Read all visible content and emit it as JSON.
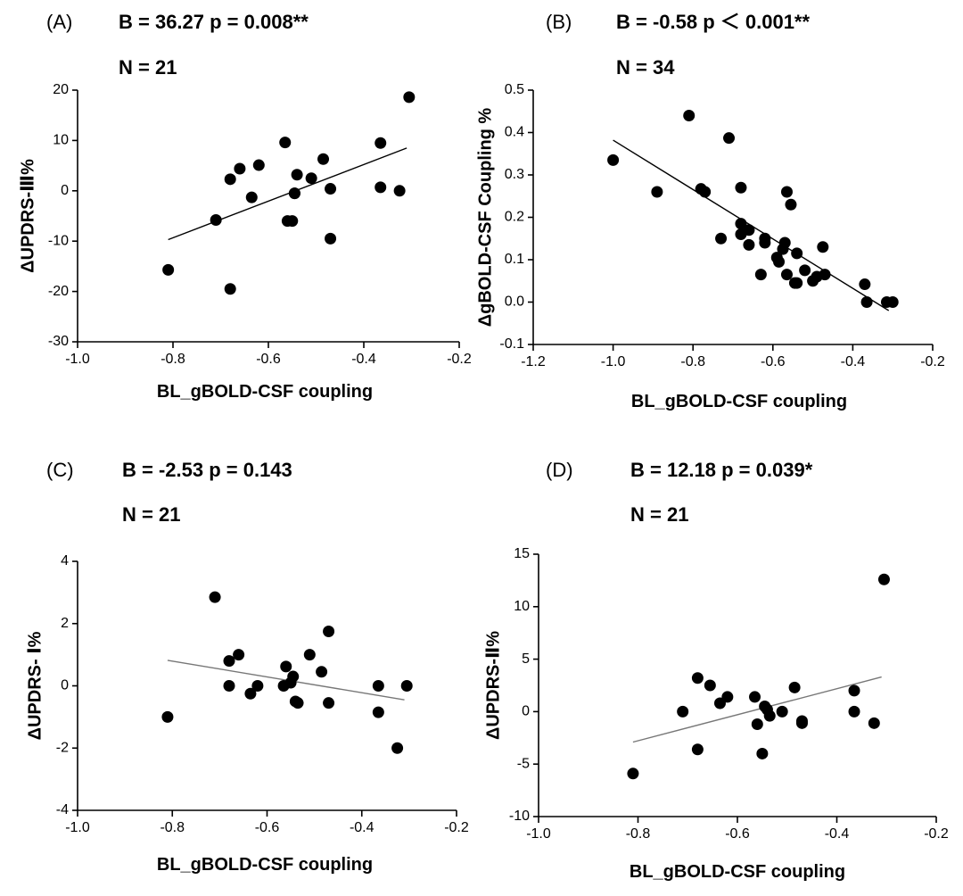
{
  "chart_data": [
    {
      "type": "scatter",
      "panel": "(A)",
      "stats": "B = 36.27 p = 0.008**",
      "n": "N = 21",
      "xlabel": "BL_gBOLD-CSF coupling",
      "ylabel": "ΔUPDRS-Ⅲ%",
      "xlim": [
        -1.0,
        -0.2
      ],
      "ylim": [
        -30,
        20
      ],
      "xticks": [
        -1.0,
        -0.8,
        -0.6,
        -0.4,
        -0.2
      ],
      "xtick_labels": [
        "-1.0",
        "-0.8",
        "-0.6",
        "-0.4",
        "-0.2"
      ],
      "yticks": [
        -30,
        -20,
        -10,
        0,
        10,
        20
      ],
      "ytick_labels": [
        "-30",
        "-20",
        "-10",
        "0",
        "10",
        "20"
      ],
      "points": [
        [
          -0.81,
          -15.7
        ],
        [
          -0.71,
          -5.8
        ],
        [
          -0.68,
          2.3
        ],
        [
          -0.68,
          -19.5
        ],
        [
          -0.66,
          4.4
        ],
        [
          -0.635,
          -1.3
        ],
        [
          -0.62,
          5.1
        ],
        [
          -0.565,
          9.6
        ],
        [
          -0.56,
          -6.0
        ],
        [
          -0.55,
          -6.0
        ],
        [
          -0.545,
          -0.5
        ],
        [
          -0.54,
          3.2
        ],
        [
          -0.51,
          2.5
        ],
        [
          -0.485,
          6.3
        ],
        [
          -0.47,
          0.4
        ],
        [
          -0.47,
          -9.5
        ],
        [
          -0.365,
          9.5
        ],
        [
          -0.365,
          0.7
        ],
        [
          -0.325,
          0.0
        ],
        [
          -0.305,
          18.6
        ],
        [
          -0.545,
          -0.5
        ]
      ],
      "fit": {
        "x": [
          -0.81,
          -0.31
        ],
        "y": [
          -9.7,
          8.5
        ]
      },
      "line_color": "#000000"
    },
    {
      "type": "scatter",
      "panel": "(B)",
      "stats": "B = -0.58  p ＜ 0.001**",
      "n": "N = 34",
      "xlabel": "BL_gBOLD-CSF coupling",
      "ylabel": "ΔgBOLD-CSF Coupling %",
      "xlim": [
        -1.2,
        -0.2
      ],
      "ylim": [
        -0.1,
        0.5
      ],
      "xticks": [
        -1.2,
        -1.0,
        -0.8,
        -0.6,
        -0.4,
        -0.2
      ],
      "xtick_labels": [
        "-1.2",
        "-1.0",
        "-0.8",
        "-0.6",
        "-0.4",
        "-0.2"
      ],
      "yticks": [
        -0.1,
        0.0,
        0.1,
        0.2,
        0.3,
        0.4,
        0.5
      ],
      "ytick_labels": [
        "-0.1",
        "0.0",
        "0.1",
        "0.2",
        "0.3",
        "0.4",
        "0.5"
      ],
      "points": [
        [
          -1.0,
          0.335
        ],
        [
          -0.89,
          0.26
        ],
        [
          -0.81,
          0.44
        ],
        [
          -0.78,
          0.267
        ],
        [
          -0.77,
          0.26
        ],
        [
          -0.71,
          0.387
        ],
        [
          -0.73,
          0.15
        ],
        [
          -0.68,
          0.27
        ],
        [
          -0.68,
          0.185
        ],
        [
          -0.68,
          0.16
        ],
        [
          -0.66,
          0.17
        ],
        [
          -0.66,
          0.135
        ],
        [
          -0.63,
          0.065
        ],
        [
          -0.62,
          0.15
        ],
        [
          -0.62,
          0.14
        ],
        [
          -0.59,
          0.105
        ],
        [
          -0.585,
          0.095
        ],
        [
          -0.575,
          0.125
        ],
        [
          -0.57,
          0.14
        ],
        [
          -0.565,
          0.26
        ],
        [
          -0.565,
          0.065
        ],
        [
          -0.555,
          0.23
        ],
        [
          -0.545,
          0.045
        ],
        [
          -0.54,
          0.115
        ],
        [
          -0.52,
          0.075
        ],
        [
          -0.5,
          0.05
        ],
        [
          -0.49,
          0.06
        ],
        [
          -0.475,
          0.13
        ],
        [
          -0.47,
          0.065
        ],
        [
          -0.37,
          0.042
        ],
        [
          -0.365,
          0.0
        ],
        [
          -0.315,
          0.0
        ],
        [
          -0.3,
          0.0
        ],
        [
          -0.54,
          0.045
        ]
      ],
      "fit": {
        "x": [
          -1.0,
          -0.31
        ],
        "y": [
          0.382,
          -0.02
        ]
      },
      "line_color": "#000000"
    },
    {
      "type": "scatter",
      "panel": "(C)",
      "stats": "B = -2.53 p = 0.143",
      "n": "N = 21",
      "xlabel": "BL_gBOLD-CSF coupling",
      "ylabel": "ΔUPDRS- Ⅰ%",
      "xlim": [
        -1.0,
        -0.2
      ],
      "ylim": [
        -4,
        4
      ],
      "xticks": [
        -1.0,
        -0.8,
        -0.6,
        -0.4,
        -0.2
      ],
      "xtick_labels": [
        "-1.0",
        "-0.8",
        "-0.6",
        "-0.4",
        "-0.2"
      ],
      "yticks": [
        -4,
        -2,
        0,
        2,
        4
      ],
      "ytick_labels": [
        "-4",
        "-2",
        "0",
        "2",
        "4"
      ],
      "points": [
        [
          -0.81,
          -1.0
        ],
        [
          -0.71,
          2.85
        ],
        [
          -0.68,
          0.8
        ],
        [
          -0.68,
          0.0
        ],
        [
          -0.66,
          1.0
        ],
        [
          -0.635,
          -0.25
        ],
        [
          -0.62,
          0.0
        ],
        [
          -0.565,
          0.0
        ],
        [
          -0.56,
          0.62
        ],
        [
          -0.55,
          0.1
        ],
        [
          -0.545,
          0.3
        ],
        [
          -0.54,
          -0.5
        ],
        [
          -0.535,
          -0.55
        ],
        [
          -0.51,
          1.0
        ],
        [
          -0.485,
          0.45
        ],
        [
          -0.47,
          1.75
        ],
        [
          -0.47,
          -0.55
        ],
        [
          -0.365,
          0.0
        ],
        [
          -0.365,
          -0.85
        ],
        [
          -0.325,
          -2.0
        ],
        [
          -0.305,
          0.0
        ]
      ],
      "fit": {
        "x": [
          -0.81,
          -0.31
        ],
        "y": [
          0.82,
          -0.45
        ]
      },
      "line_color": "#777777"
    },
    {
      "type": "scatter",
      "panel": "(D)",
      "stats": "B = 12.18 p = 0.039*",
      "n": "N = 21",
      "xlabel": "BL_gBOLD-CSF coupling",
      "ylabel": "ΔUPDRS-Ⅱ%",
      "xlim": [
        -1.0,
        -0.2
      ],
      "ylim": [
        -10,
        15
      ],
      "xticks": [
        -1.0,
        -0.8,
        -0.6,
        -0.4,
        -0.2
      ],
      "xtick_labels": [
        "-1.0",
        "-0.8",
        "-0.6",
        "-0.4",
        "-0.2"
      ],
      "yticks": [
        -10,
        -5,
        0,
        5,
        10,
        15
      ],
      "ytick_labels": [
        "-10",
        "-5",
        "0",
        "5",
        "10",
        "15"
      ],
      "points": [
        [
          -0.81,
          -5.9
        ],
        [
          -0.71,
          0.0
        ],
        [
          -0.68,
          3.2
        ],
        [
          -0.68,
          -3.6
        ],
        [
          -0.655,
          2.5
        ],
        [
          -0.635,
          0.8
        ],
        [
          -0.62,
          1.4
        ],
        [
          -0.565,
          1.4
        ],
        [
          -0.56,
          -1.2
        ],
        [
          -0.55,
          -4.0
        ],
        [
          -0.545,
          0.5
        ],
        [
          -0.54,
          0.2
        ],
        [
          -0.535,
          -0.4
        ],
        [
          -0.51,
          0.0
        ],
        [
          -0.485,
          2.3
        ],
        [
          -0.47,
          -0.9
        ],
        [
          -0.47,
          -1.1
        ],
        [
          -0.365,
          2.0
        ],
        [
          -0.365,
          0.0
        ],
        [
          -0.325,
          -1.1
        ],
        [
          -0.305,
          12.6
        ]
      ],
      "fit": {
        "x": [
          -0.81,
          -0.31
        ],
        "y": [
          -2.9,
          3.3
        ]
      },
      "line_color": "#777777"
    }
  ]
}
